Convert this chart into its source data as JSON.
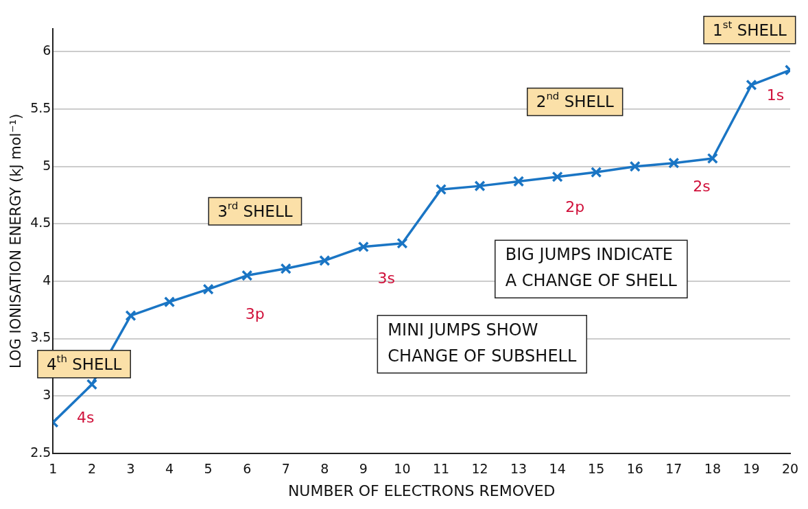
{
  "chart_data": {
    "type": "line",
    "xlabel": "NUMBER OF ELECTRONS REMOVED",
    "ylabel": "LOG IONISATION ENERGY (kJ mol⁻¹)",
    "x": [
      1,
      2,
      3,
      4,
      5,
      6,
      7,
      8,
      9,
      10,
      11,
      12,
      13,
      14,
      15,
      16,
      17,
      18,
      19,
      20
    ],
    "series": [
      {
        "color": "#1a75c4",
        "values": [
          2.77,
          3.1,
          3.7,
          3.82,
          3.93,
          4.05,
          4.11,
          4.18,
          4.3,
          4.33,
          4.8,
          4.83,
          4.87,
          4.91,
          4.95,
          5.0,
          5.03,
          5.07,
          5.71,
          5.84
        ]
      }
    ],
    "xlim": [
      1,
      20
    ],
    "xticks": [
      1,
      2,
      3,
      4,
      5,
      6,
      7,
      8,
      9,
      10,
      11,
      12,
      13,
      14,
      15,
      16,
      17,
      18,
      19,
      20
    ],
    "ylim": [
      2.5,
      6.2
    ],
    "yticks": [
      2.5,
      3,
      3.5,
      4,
      4.5,
      5,
      5.5,
      6
    ],
    "grid": "y",
    "legend": false,
    "marker": "cross",
    "line_style": "solid",
    "annotations": [
      "4$^{th}$ SHELL",
      "3$^{rd}$ SHELL",
      "2$^{nd}$ SHELL",
      "1$^{st}$ SHELL",
      "4s",
      "3p",
      "3s",
      "2p",
      "2s",
      "1s",
      "BIG JUMPS INDICATE A CHANGE OF SHELL",
      "MINI JUMPS SHOW CHANGE OF SUBSHELL"
    ]
  }
}
